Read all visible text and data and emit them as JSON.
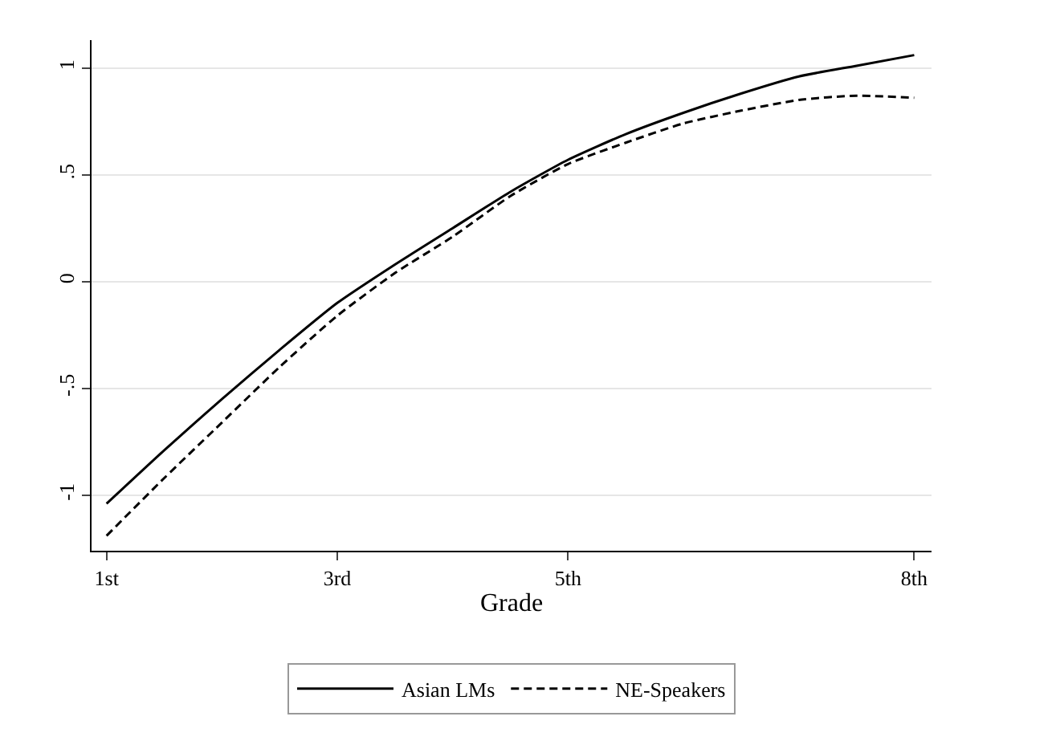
{
  "chart_data": {
    "type": "line",
    "xlabel": "Grade",
    "x": [
      1,
      1.5,
      2,
      2.5,
      3,
      3.5,
      4,
      4.5,
      5,
      5.5,
      6,
      6.5,
      7,
      7.5,
      8
    ],
    "series": [
      {
        "name": "Asian LMs",
        "color": "#000000",
        "line_style": "solid",
        "values": [
          -1.04,
          -0.79,
          -0.55,
          -0.32,
          -0.1,
          0.08,
          0.25,
          0.42,
          0.57,
          0.69,
          0.79,
          0.88,
          0.96,
          1.01,
          1.06
        ]
      },
      {
        "name": "NE-Speakers",
        "color": "#000000",
        "line_style": "dashed",
        "values": [
          -1.19,
          -0.92,
          -0.66,
          -0.4,
          -0.16,
          0.04,
          0.21,
          0.4,
          0.55,
          0.65,
          0.74,
          0.8,
          0.85,
          0.87,
          0.86
        ]
      }
    ],
    "xlim": [
      0.87,
      8.15
    ],
    "xticks": [
      {
        "value": 1,
        "label": "1st"
      },
      {
        "value": 3,
        "label": "3rd"
      },
      {
        "value": 5,
        "label": "5th"
      },
      {
        "value": 8,
        "label": "8th"
      }
    ],
    "ylim": [
      -1.26,
      1.13
    ],
    "yticks": [
      {
        "value": -1,
        "label": "-1"
      },
      {
        "value": -0.5,
        "label": "-.5"
      },
      {
        "value": 0,
        "label": "0"
      },
      {
        "value": 0.5,
        "label": ".5"
      },
      {
        "value": 1,
        "label": "1"
      }
    ],
    "grid": "y",
    "legend": "bottom",
    "marker": "none"
  }
}
